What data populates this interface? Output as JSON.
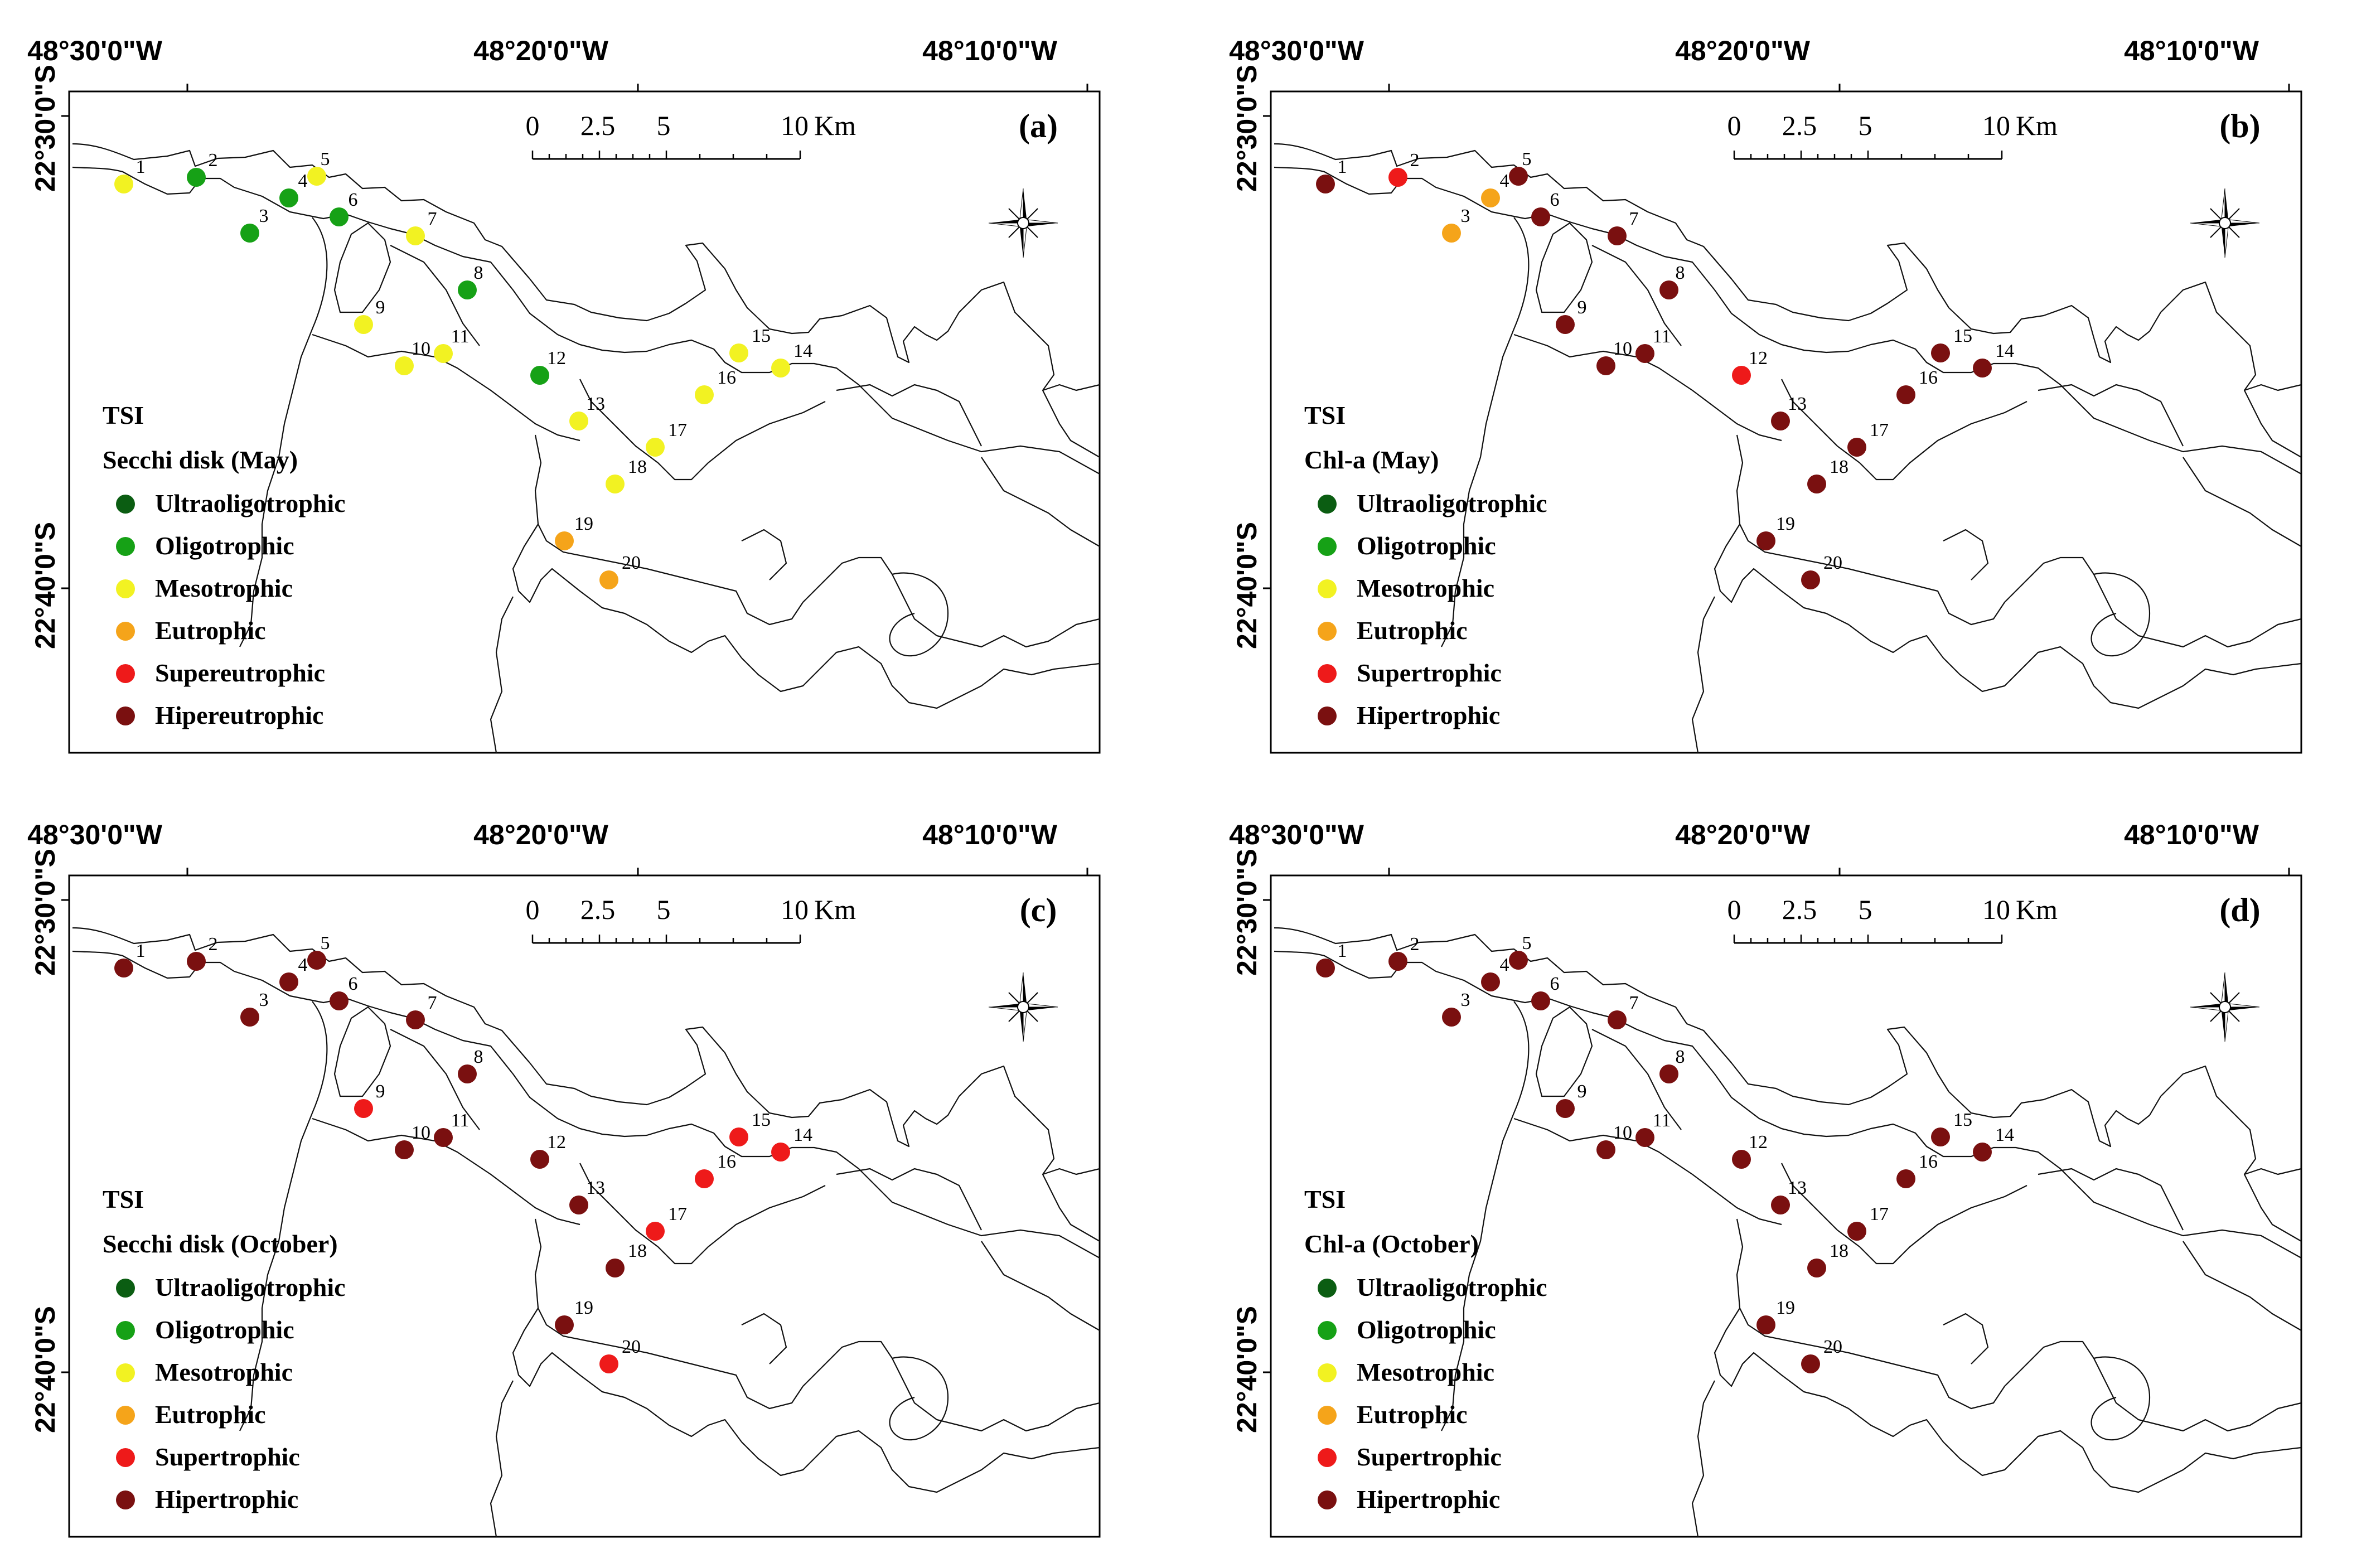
{
  "colors": {
    "Ultraoligotrophic": "#0b5d12",
    "Oligotrophic": "#16a116",
    "Mesotrophic": "#f2f222",
    "Eutrophic": "#f5a41a",
    "Supereutrophic": "#ee1a1a",
    "Supertrophic": "#ee1a1a",
    "Hipereutrophic": "#7a1010",
    "Hipertrophic": "#7a1010"
  },
  "axes": {
    "lon_labels": [
      "48°30'0\"W",
      "48°20'0\"W",
      "48°10'0\"W"
    ],
    "lat_labels": [
      "22°30'0\"S",
      "22°40'0\"S"
    ]
  },
  "scale": {
    "ticks": [
      "0",
      "2.5",
      "5",
      "10"
    ],
    "unit": "Km"
  },
  "panels": [
    {
      "id": "a",
      "label": "(a)",
      "legend_title": "TSI",
      "legend_subtitle": "Secchi disk (May)",
      "legend": [
        "Ultraoligotrophic",
        "Oligotrophic",
        "Mesotrophic",
        "Eutrophic",
        "Supereutrophic",
        "Hipereutrophic"
      ],
      "sites": [
        "Mesotrophic",
        "Oligotrophic",
        "Oligotrophic",
        "Oligotrophic",
        "Mesotrophic",
        "Oligotrophic",
        "Mesotrophic",
        "Oligotrophic",
        "Mesotrophic",
        "Mesotrophic",
        "Mesotrophic",
        "Oligotrophic",
        "Mesotrophic",
        "Mesotrophic",
        "Mesotrophic",
        "Mesotrophic",
        "Mesotrophic",
        "Mesotrophic",
        "Eutrophic",
        "Eutrophic"
      ]
    },
    {
      "id": "b",
      "label": "(b)",
      "legend_title": "TSI",
      "legend_subtitle": "Chl-a (May)",
      "legend": [
        "Ultraoligotrophic",
        "Oligotrophic",
        "Mesotrophic",
        "Eutrophic",
        "Supertrophic",
        "Hipertrophic"
      ],
      "sites": [
        "Hipertrophic",
        "Supertrophic",
        "Eutrophic",
        "Eutrophic",
        "Hipertrophic",
        "Hipertrophic",
        "Hipertrophic",
        "Hipertrophic",
        "Hipertrophic",
        "Hipertrophic",
        "Hipertrophic",
        "Supertrophic",
        "Hipertrophic",
        "Hipertrophic",
        "Hipertrophic",
        "Hipertrophic",
        "Hipertrophic",
        "Hipertrophic",
        "Hipertrophic",
        "Hipertrophic"
      ]
    },
    {
      "id": "c",
      "label": "(c)",
      "legend_title": "TSI",
      "legend_subtitle": "Secchi disk (October)",
      "legend": [
        "Ultraoligotrophic",
        "Oligotrophic",
        "Mesotrophic",
        "Eutrophic",
        "Supertrophic",
        "Hipertrophic"
      ],
      "sites": [
        "Hipertrophic",
        "Hipertrophic",
        "Hipertrophic",
        "Hipertrophic",
        "Hipertrophic",
        "Hipertrophic",
        "Hipertrophic",
        "Hipertrophic",
        "Supertrophic",
        "Hipertrophic",
        "Hipertrophic",
        "Hipertrophic",
        "Hipertrophic",
        "Supertrophic",
        "Supertrophic",
        "Supertrophic",
        "Supertrophic",
        "Hipertrophic",
        "Hipertrophic",
        "Supertrophic"
      ]
    },
    {
      "id": "d",
      "label": "(d)",
      "legend_title": "TSI",
      "legend_subtitle": "Chl-a (October)",
      "legend": [
        "Ultraoligotrophic",
        "Oligotrophic",
        "Mesotrophic",
        "Eutrophic",
        "Supertrophic",
        "Hipertrophic"
      ],
      "sites": [
        "Hipertrophic",
        "Hipertrophic",
        "Hipertrophic",
        "Hipertrophic",
        "Hipertrophic",
        "Hipertrophic",
        "Hipertrophic",
        "Hipertrophic",
        "Hipertrophic",
        "Hipertrophic",
        "Hipertrophic",
        "Hipertrophic",
        "Hipertrophic",
        "Hipertrophic",
        "Hipertrophic",
        "Hipertrophic",
        "Hipertrophic",
        "Hipertrophic",
        "Hipertrophic",
        "Hipertrophic"
      ]
    }
  ],
  "site_labels": [
    "1",
    "2",
    "3",
    "4",
    "5",
    "6",
    "7",
    "8",
    "9",
    "10",
    "11",
    "12",
    "13",
    "14",
    "15",
    "16",
    "17",
    "18",
    "19",
    "20"
  ]
}
